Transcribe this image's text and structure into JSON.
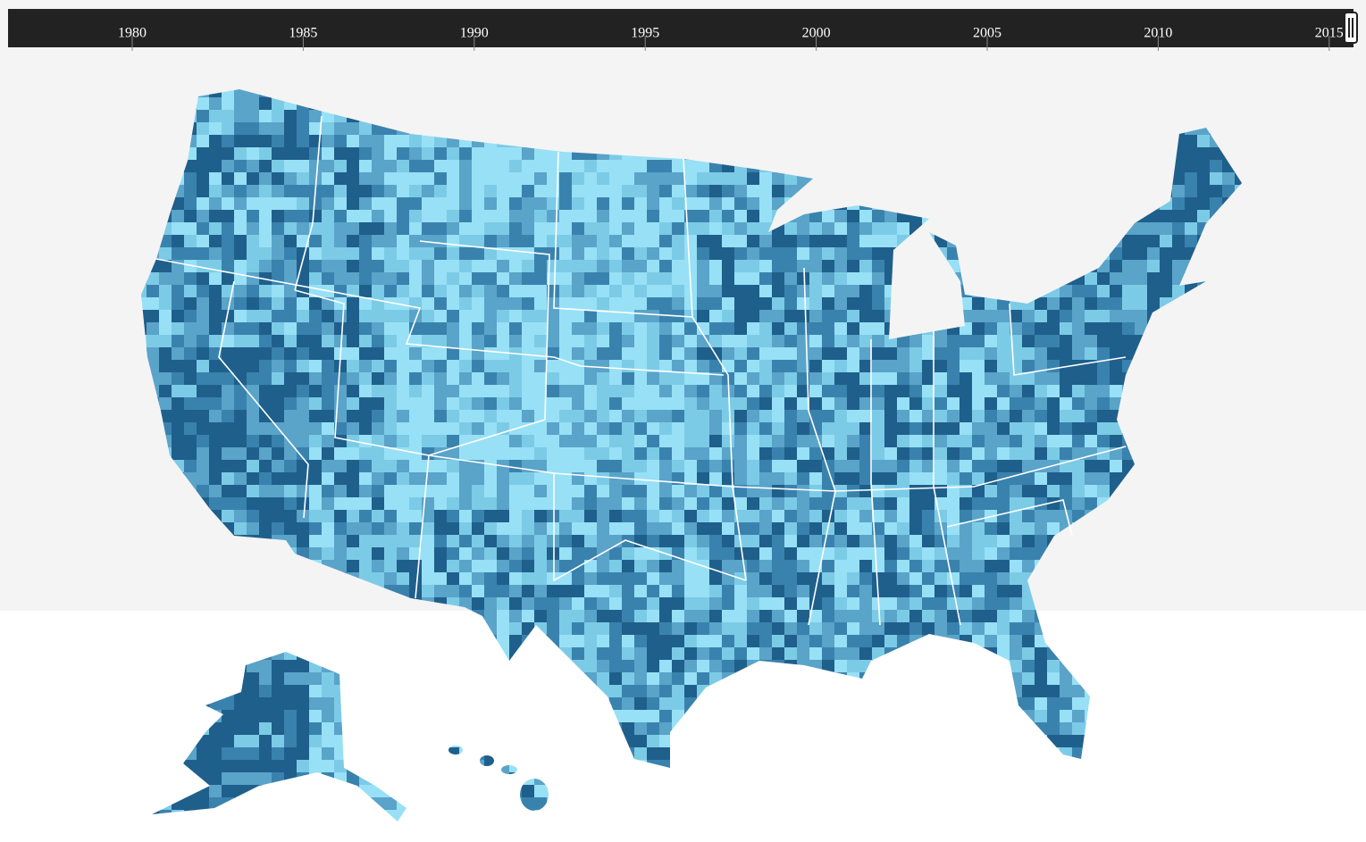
{
  "timeline": {
    "ticks": [
      "1980",
      "1985",
      "1990",
      "1995",
      "2000",
      "2005",
      "2010",
      "2015"
    ]
  }
}
